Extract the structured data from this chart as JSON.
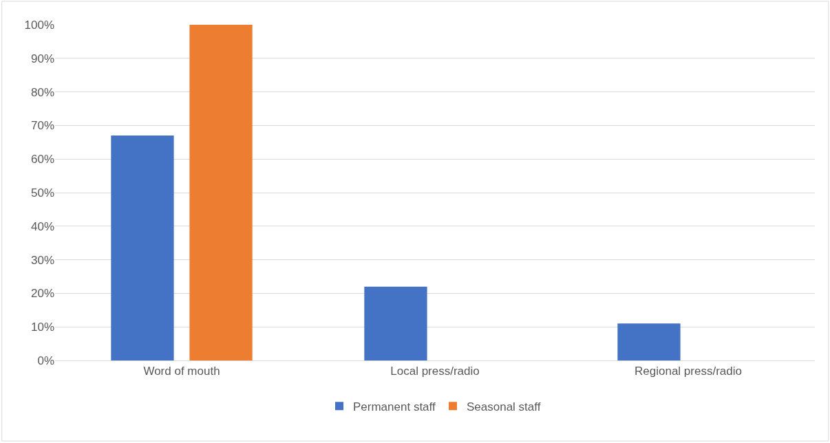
{
  "chart_data": {
    "type": "bar",
    "categories": [
      "Word of mouth",
      "Local press/radio",
      "Regional press/radio"
    ],
    "series": [
      {
        "name": "Permanent staff",
        "color": "#4472c4",
        "values": [
          67,
          22,
          11
        ]
      },
      {
        "name": "Seasonal staff",
        "color": "#ed7d31",
        "values": [
          100,
          0,
          0
        ]
      }
    ],
    "ylim": [
      0,
      100
    ],
    "yticks": [
      {
        "value": 0,
        "label": "0%"
      },
      {
        "value": 10,
        "label": "10%"
      },
      {
        "value": 20,
        "label": "20%"
      },
      {
        "value": 30,
        "label": "30%"
      },
      {
        "value": 40,
        "label": "40%"
      },
      {
        "value": 50,
        "label": "50%"
      },
      {
        "value": 60,
        "label": "60%"
      },
      {
        "value": 70,
        "label": "70%"
      },
      {
        "value": 80,
        "label": "80%"
      },
      {
        "value": 90,
        "label": "90%"
      },
      {
        "value": 100,
        "label": "100%"
      }
    ],
    "grid": "y",
    "legend": "bottom"
  }
}
